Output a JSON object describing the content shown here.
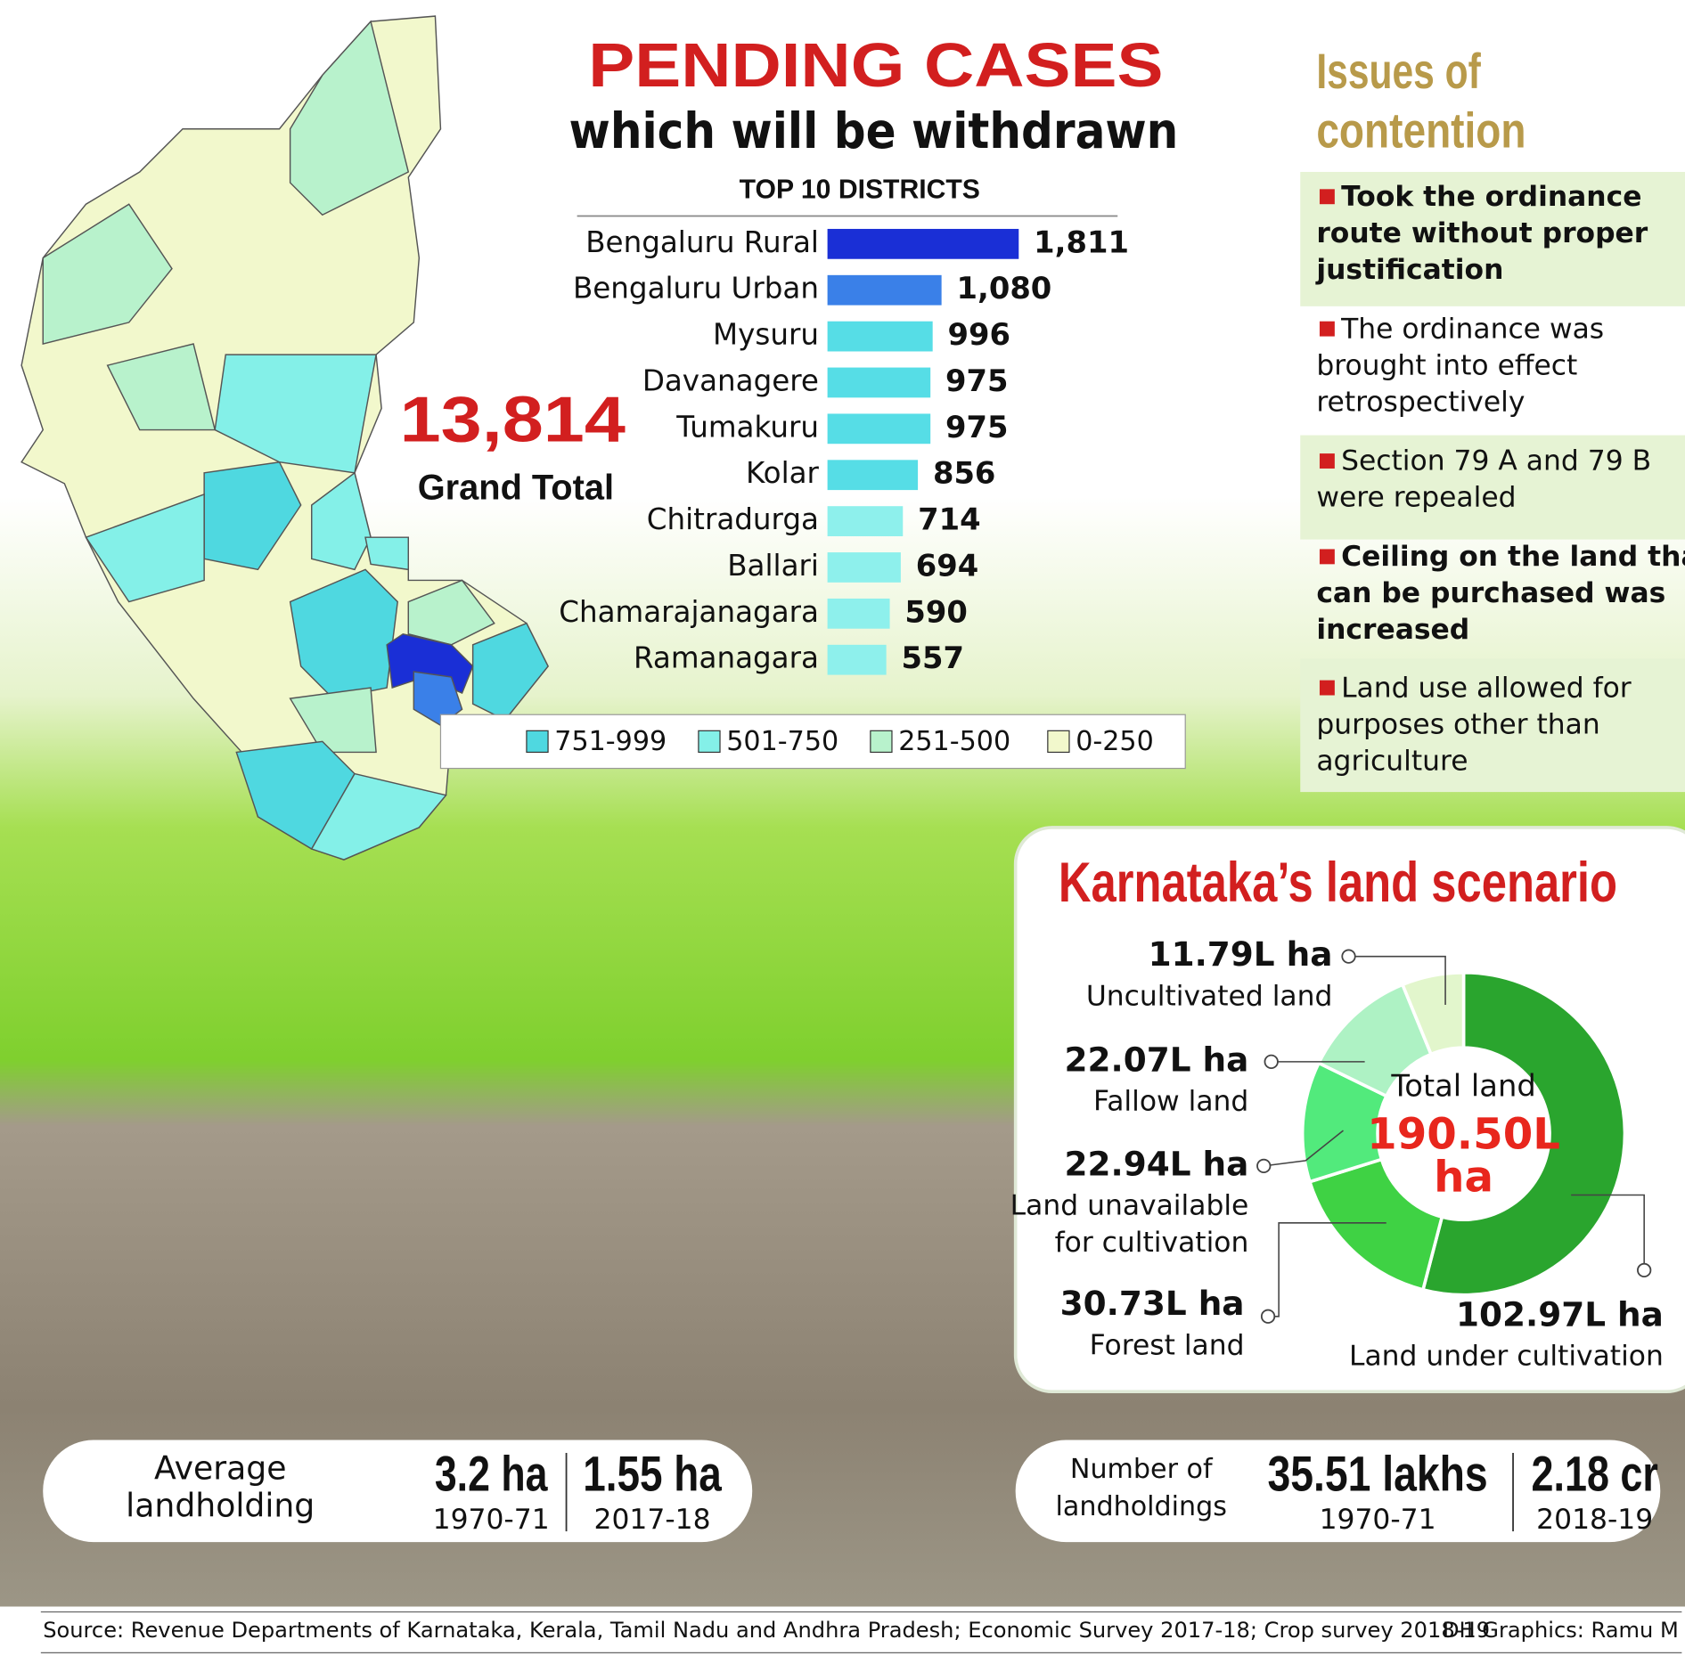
{
  "chart_data": [
    {
      "type": "bar",
      "title": "PENDING CASES",
      "subtitle": "which will be withdrawn",
      "label": "TOP 10 DISTRICTS",
      "categories": [
        "Bengaluru Rural",
        "Bengaluru Urban",
        "Mysuru",
        "Davanagere",
        "Tumakuru",
        "Kolar",
        "Chitradurga",
        "Ballari",
        "Chamarajanagara",
        "Ramanagara"
      ],
      "values": [
        1811,
        1080,
        996,
        975,
        975,
        856,
        714,
        694,
        590,
        557
      ],
      "value_labels": [
        "1,811",
        "1,080",
        "996",
        "975",
        "975",
        "856",
        "714",
        "694",
        "590",
        "557"
      ],
      "colors": [
        "#1a2fd6",
        "#3a80e8",
        "#56dde6",
        "#56dde6",
        "#56dde6",
        "#56dde6",
        "#8ef0ec",
        "#8ef0ec",
        "#8ef0ec",
        "#8ef0ec"
      ],
      "total": "13,814",
      "total_label": "Grand Total"
    },
    {
      "type": "pie",
      "donut": true,
      "title": "Karnataka’s land scenario",
      "center_label": "Total land",
      "total": [
        "190.50L",
        "ha"
      ],
      "labels": [
        [
          "Land under cultivation"
        ],
        [
          "Forest land"
        ],
        [
          "Land unavailable",
          "for cultivation"
        ],
        [
          "Fallow land"
        ],
        [
          "Uncultivated land"
        ]
      ],
      "values": [
        102.97,
        30.73,
        22.94,
        22.07,
        11.79
      ],
      "value_labels": [
        "102.97L ha",
        "30.73L ha",
        "22.94L ha",
        "22.07L ha",
        "11.79L ha"
      ],
      "colors": [
        "#2aa52e",
        "#3fd244",
        "#52ea7c",
        "#aef2c4",
        "#e2f6cc"
      ]
    }
  ],
  "map_legend": [
    {
      "label": "751-999",
      "color": "#4fd8e0"
    },
    {
      "label": "501-750",
      "color": "#84f0e8"
    },
    {
      "label": "251-500",
      "color": "#b8f2cc"
    },
    {
      "label": "0-250",
      "color": "#f2f8cc"
    }
  ],
  "issues": {
    "title": [
      "Issues of",
      "contention"
    ],
    "items": [
      {
        "bold": true,
        "lines": [
          "Took the ordinance",
          "route without proper",
          "justification"
        ]
      },
      {
        "bold": false,
        "lines": [
          "The ordinance was",
          "brought into effect",
          "retrospectively"
        ]
      },
      {
        "bold": false,
        "lines": [
          "Section 79 A and 79 B",
          "were repealed"
        ]
      },
      {
        "bold": true,
        "lines": [
          "Ceiling on the land that",
          "can be purchased was",
          "increased"
        ]
      },
      {
        "bold": false,
        "lines": [
          "Land use allowed  for",
          "purposes other than",
          "agriculture"
        ]
      }
    ]
  },
  "stats": [
    {
      "title": [
        "Average",
        "landholding"
      ],
      "figures": [
        {
          "value": "3.2 ha",
          "period": "1970-71"
        },
        {
          "value": "1.55 ha",
          "period": "2017-18"
        }
      ]
    },
    {
      "title": [
        "Number of",
        "landholdings"
      ],
      "figures": [
        {
          "value": "35.51 lakhs",
          "period": "1970-71"
        },
        {
          "value": "2.18 cr",
          "period": "2018-19"
        }
      ]
    }
  ],
  "source": "Source: Revenue Departments of Karnataka, Kerala, Tamil Nadu and Andhra Pradesh;  Economic Survey 2017-18; Crop survey 2018-19",
  "credit": "DH Graphics: Ramu M"
}
